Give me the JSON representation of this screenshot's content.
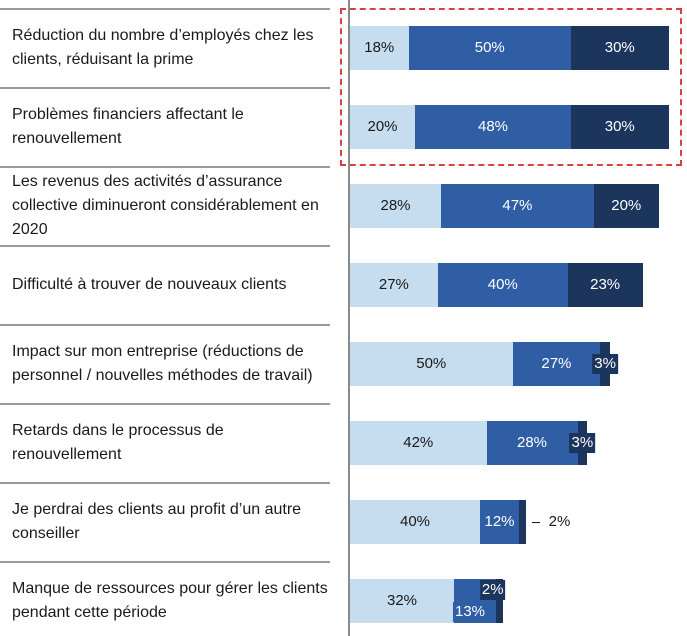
{
  "chart_data": {
    "type": "stacked-bar-horizontal",
    "categories": [
      "Réduction du nombre d’employés chez les clients, réduisant la prime",
      "Problèmes financiers affectant le renouvellement",
      "Les revenus des activités d’assurance collective diminueront considérablement en 2020",
      "Difficulté à trouver de nouveaux clients",
      "Impact sur mon entreprise (réductions de personnel / nouvelles méthodes de travail)",
      "Retards dans le processus de renouvellement",
      "Je perdrai des clients au profit d’un autre conseiller",
      "Manque de ressources pour gérer les clients pendant cette période"
    ],
    "xlim": [
      0,
      100
    ],
    "series": [
      {
        "color": "#c6dcef",
        "label_color": "#1a1a1a",
        "values": [
          18,
          20,
          28,
          27,
          50,
          42,
          40,
          32
        ],
        "value_labels": [
          "18%",
          "20%",
          "28%",
          "27%",
          "50%",
          "42%",
          "40%",
          "32%"
        ]
      },
      {
        "color": "#2f5ea5",
        "label_color": "#ffffff",
        "values": [
          50,
          48,
          47,
          40,
          27,
          28,
          12,
          13
        ],
        "value_labels": [
          "50%",
          "48%",
          "47%",
          "40%",
          "27%",
          "28%",
          "12%",
          "13%"
        ]
      },
      {
        "color": "#1c355c",
        "label_color": "#ffffff",
        "values": [
          30,
          30,
          20,
          23,
          3,
          3,
          2,
          2
        ],
        "value_labels": [
          "30%",
          "30%",
          "20%",
          "23%",
          "3%",
          "3%",
          "2%",
          "2%"
        ]
      }
    ]
  }
}
